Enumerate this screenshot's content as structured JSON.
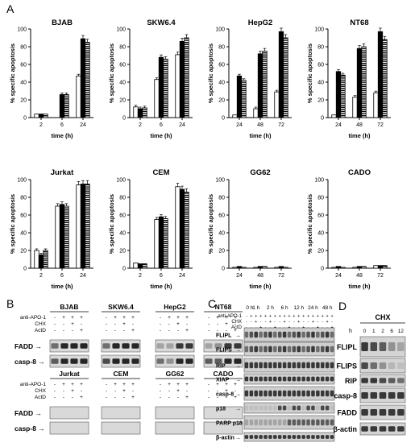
{
  "panel_letters": {
    "a": "A",
    "b": "B",
    "c": "C",
    "d": "D"
  },
  "ylabel": "% specific apoptosis",
  "xlabel": "time (h)",
  "chart_data": [
    {
      "type": "bar",
      "title": "BJAB",
      "categories": [
        "2",
        "6",
        "24"
      ],
      "ylim": [
        0,
        100
      ],
      "yticks": [
        0,
        20,
        40,
        60,
        80,
        100
      ],
      "values": [
        [
          4,
          4,
          4
        ],
        [
          0,
          26,
          26
        ],
        [
          47,
          89,
          85
        ]
      ]
    },
    {
      "type": "bar",
      "title": "SKW6.4",
      "categories": [
        "2",
        "6",
        "24"
      ],
      "ylim": [
        0,
        100
      ],
      "yticks": [
        0,
        20,
        40,
        60,
        80,
        100
      ],
      "values": [
        [
          12,
          10,
          11
        ],
        [
          43,
          68,
          66
        ],
        [
          71,
          86,
          90
        ]
      ]
    },
    {
      "type": "bar",
      "title": "HepG2",
      "categories": [
        "24",
        "48",
        "72"
      ],
      "ylim": [
        0,
        100
      ],
      "yticks": [
        0,
        20,
        40,
        60,
        80,
        100
      ],
      "values": [
        [
          3,
          47,
          42
        ],
        [
          10,
          72,
          75
        ],
        [
          29,
          97,
          90
        ]
      ]
    },
    {
      "type": "bar",
      "title": "NT68",
      "categories": [
        "24",
        "48",
        "72"
      ],
      "ylim": [
        0,
        100
      ],
      "yticks": [
        0,
        20,
        40,
        60,
        80,
        100
      ],
      "values": [
        [
          3,
          52,
          48
        ],
        [
          23,
          78,
          80
        ],
        [
          28,
          97,
          88
        ]
      ]
    },
    {
      "type": "bar",
      "title": "Jurkat",
      "categories": [
        "2",
        "6",
        "24"
      ],
      "ylim": [
        0,
        100
      ],
      "yticks": [
        0,
        20,
        40,
        60,
        80,
        100
      ],
      "values": [
        [
          20,
          15,
          20
        ],
        [
          70,
          72,
          70
        ],
        [
          94,
          95,
          95
        ]
      ]
    },
    {
      "type": "bar",
      "title": "CEM",
      "categories": [
        "2",
        "6",
        "24"
      ],
      "ylim": [
        0,
        100
      ],
      "yticks": [
        0,
        20,
        40,
        60,
        80,
        100
      ],
      "values": [
        [
          6,
          5,
          5
        ],
        [
          55,
          58,
          56
        ],
        [
          92,
          89,
          86
        ]
      ]
    },
    {
      "type": "bar",
      "title": "GG62",
      "categories": [
        "24",
        "48",
        "72"
      ],
      "ylim": [
        0,
        100
      ],
      "yticks": [
        0,
        20,
        40,
        60,
        80,
        100
      ],
      "values": [
        [
          1,
          2,
          1
        ],
        [
          1,
          2,
          2
        ],
        [
          1,
          2,
          1
        ]
      ]
    },
    {
      "type": "bar",
      "title": "CADO",
      "categories": [
        "24",
        "48",
        "72"
      ],
      "ylim": [
        0,
        100
      ],
      "yticks": [
        0,
        20,
        40,
        60,
        80,
        100
      ],
      "values": [
        [
          1,
          2,
          1
        ],
        [
          1,
          2,
          2
        ],
        [
          3,
          3,
          3
        ]
      ]
    }
  ],
  "panel_b": {
    "top_cells": [
      "BJAB",
      "SKW6.4",
      "HepG2",
      "NT68"
    ],
    "bottom_cells": [
      "Jurkat",
      "CEM",
      "GG62",
      "CADO"
    ],
    "row_labels": [
      "anti-APO-1",
      "CHX",
      "ActD"
    ],
    "signs": [
      [
        "-",
        "+",
        "+",
        "+"
      ],
      [
        "-",
        "-",
        "+",
        "-"
      ],
      [
        "-",
        "-",
        "-",
        "+"
      ]
    ],
    "blots": [
      "FADD",
      "casp-8"
    ]
  },
  "panel_c": {
    "times": [
      "0 h",
      "1 h",
      "2 h",
      "6 h",
      "12 h",
      "24 h",
      "48 h"
    ],
    "row_labels": [
      "anti-APO-1",
      "CHX",
      "ActD"
    ],
    "signs": [
      [
        "-",
        "+",
        "+",
        "+",
        "+",
        "+",
        "+",
        "+",
        "+",
        "+",
        "+",
        "+",
        "+",
        "+",
        "+",
        "+",
        "+",
        "+",
        "+"
      ],
      [
        "-",
        "-",
        "+",
        "-",
        "-",
        "+",
        "-",
        "-",
        "+",
        "-",
        "-",
        "+",
        "-",
        "-",
        "+",
        "-",
        "-",
        "+",
        "-"
      ],
      [
        "-",
        "-",
        "-",
        "+",
        "-",
        "-",
        "+",
        "-",
        "-",
        "+",
        "-",
        "-",
        "+",
        "-",
        "-",
        "+",
        "-",
        "-",
        "+"
      ]
    ],
    "blots": [
      "FLIPL",
      "FLIPS",
      "RIP",
      "XIAP",
      "casp-8",
      "p18",
      "PARP p18",
      "β-actin"
    ]
  },
  "panel_d": {
    "treatment": "CHX",
    "hour_label": "h",
    "hours": [
      "0",
      "1",
      "2",
      "6",
      "12"
    ],
    "blots": [
      "FLIPL",
      "FLIPS",
      "RIP",
      "casp-8",
      "FADD",
      "β-actin"
    ]
  }
}
